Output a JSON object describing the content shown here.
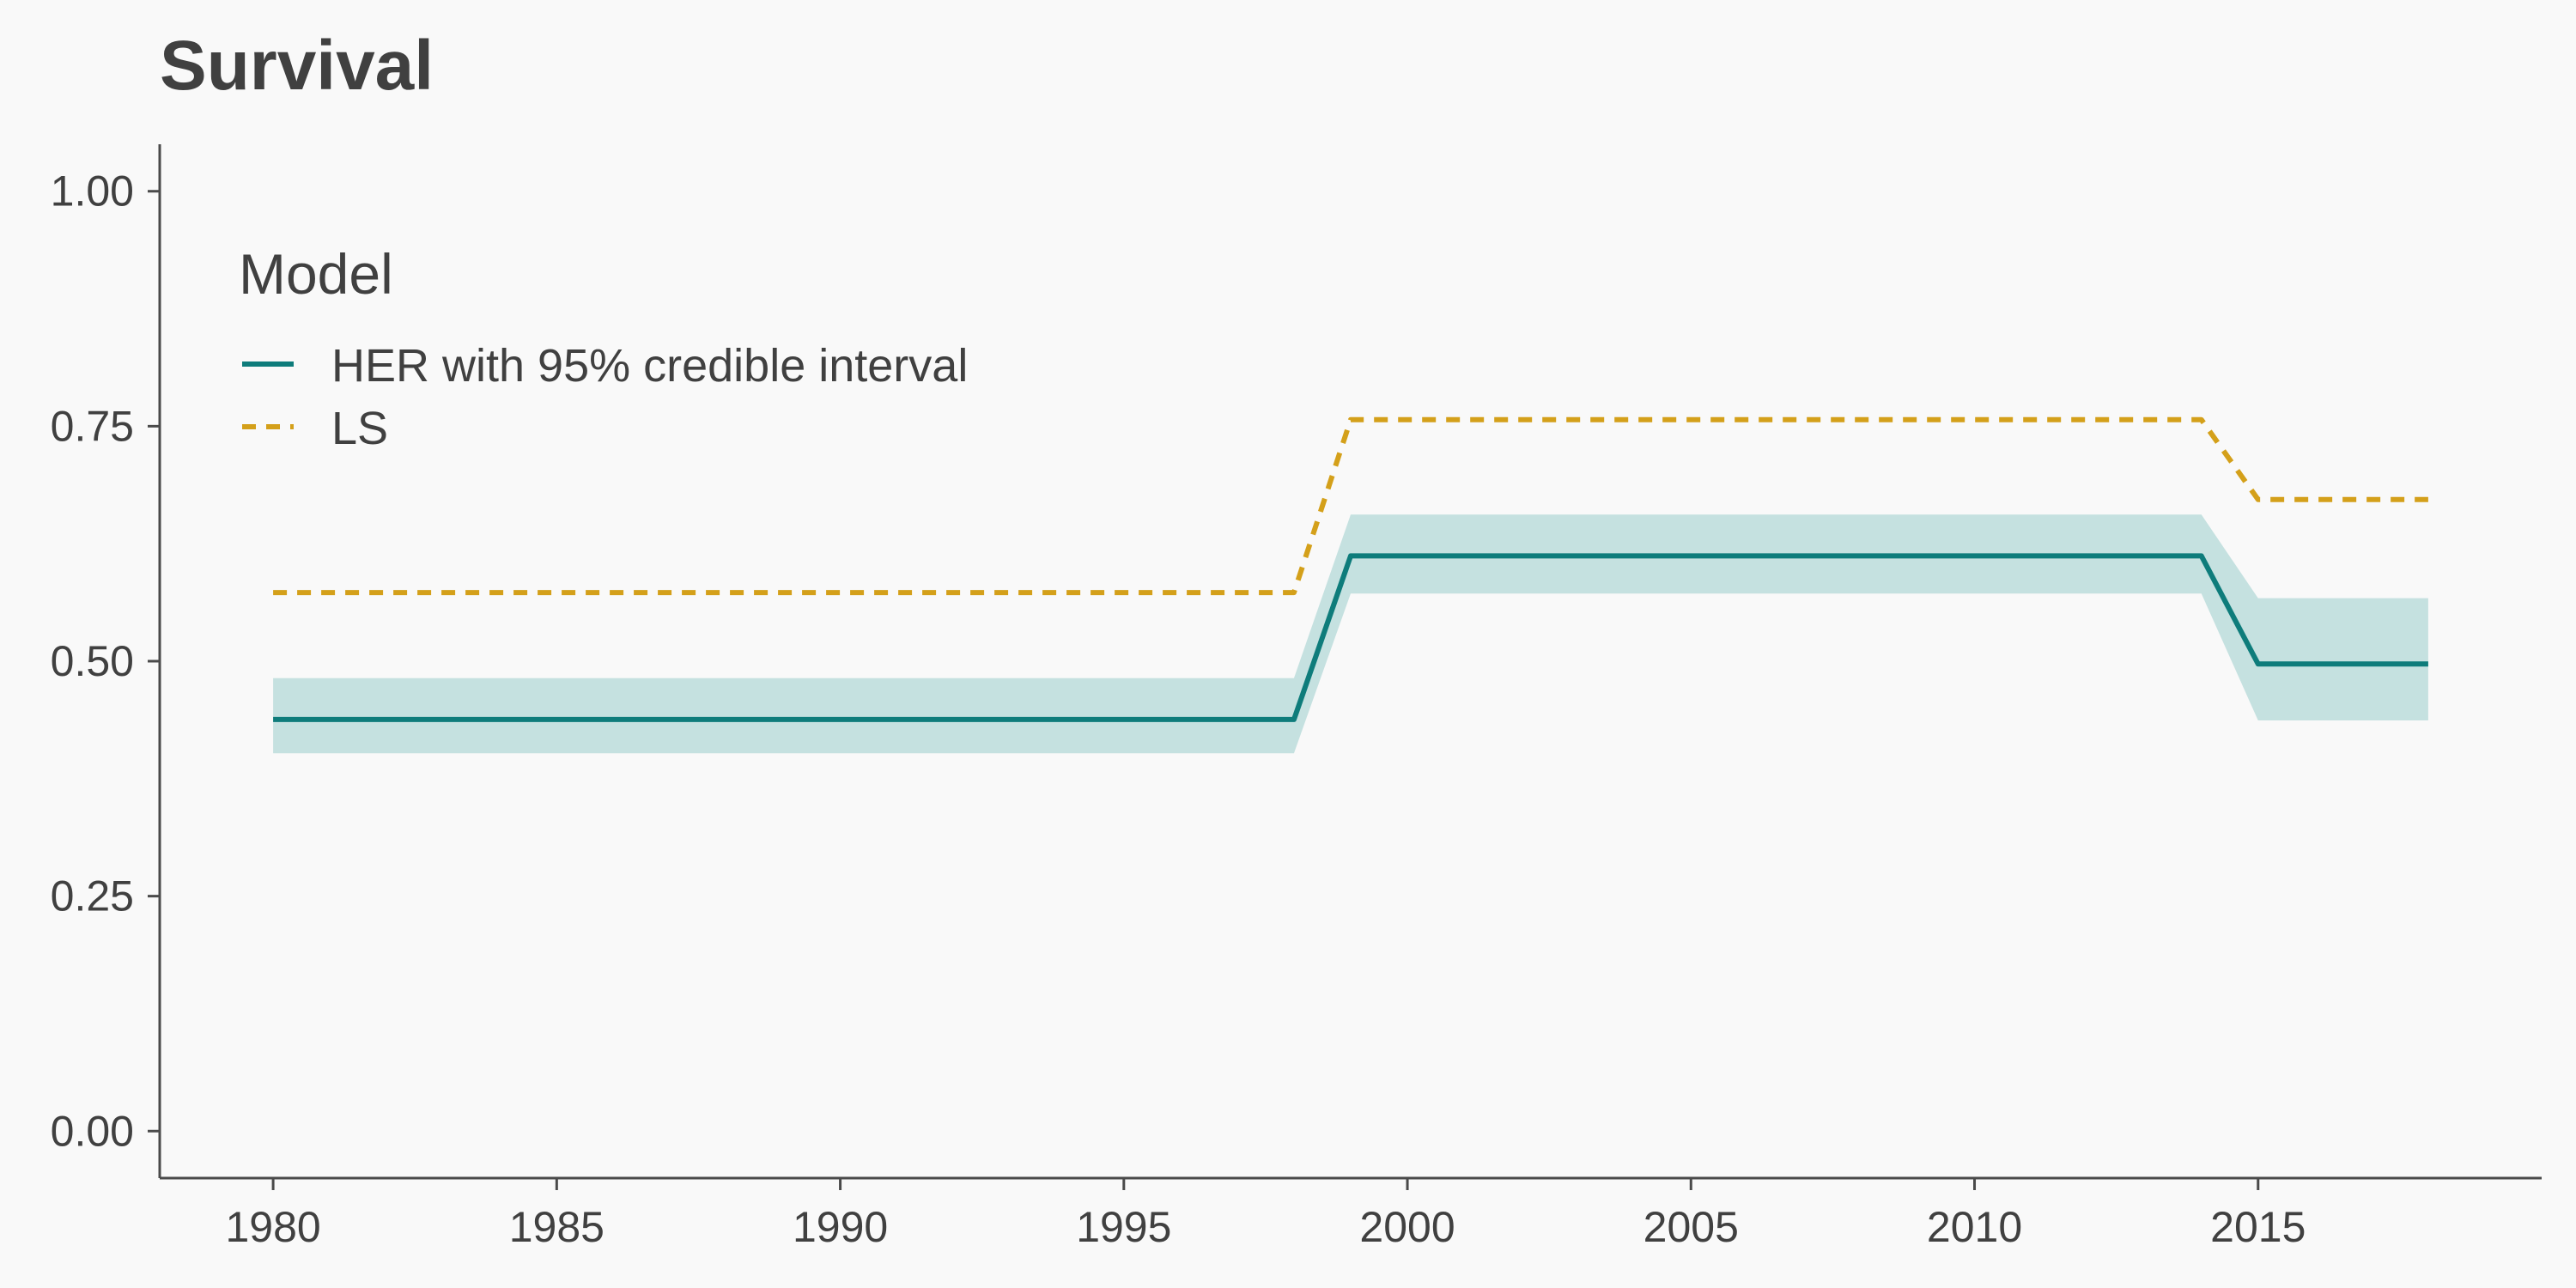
{
  "chart_data": {
    "type": "line",
    "title": "Survival",
    "xlabel": "",
    "ylabel": "",
    "xlim": [
      1978,
      2020
    ],
    "ylim": [
      -0.05,
      1.05
    ],
    "x_ticks": [
      1980,
      1985,
      1990,
      1995,
      2000,
      2005,
      2010,
      2015
    ],
    "y_ticks": [
      0.0,
      0.25,
      0.5,
      0.75,
      1.0
    ],
    "y_tick_labels": [
      "0.00",
      "0.25",
      "0.50",
      "0.75",
      "1.00"
    ],
    "grid": false,
    "legend": {
      "title": "Model",
      "placement": "top-left",
      "entries": [
        "HER with 95% credible interval",
        "LS"
      ]
    },
    "series": [
      {
        "name": "HER with 95% credible interval",
        "color": "#0e7c7b",
        "band_color": "#c5e1e0",
        "style": "solid",
        "x": [
          1980,
          1998,
          1999,
          2014,
          2015,
          2018
        ],
        "y": [
          0.438,
          0.438,
          0.612,
          0.612,
          0.497,
          0.497
        ],
        "lower": [
          0.402,
          0.402,
          0.572,
          0.572,
          0.437,
          0.437
        ],
        "upper": [
          0.482,
          0.482,
          0.656,
          0.656,
          0.567,
          0.567
        ]
      },
      {
        "name": "LS",
        "color": "#d4a01a",
        "style": "dashed",
        "x": [
          1980,
          1998,
          1999,
          2014,
          2015,
          2018
        ],
        "y": [
          0.573,
          0.573,
          0.757,
          0.757,
          0.672,
          0.672
        ]
      }
    ]
  }
}
